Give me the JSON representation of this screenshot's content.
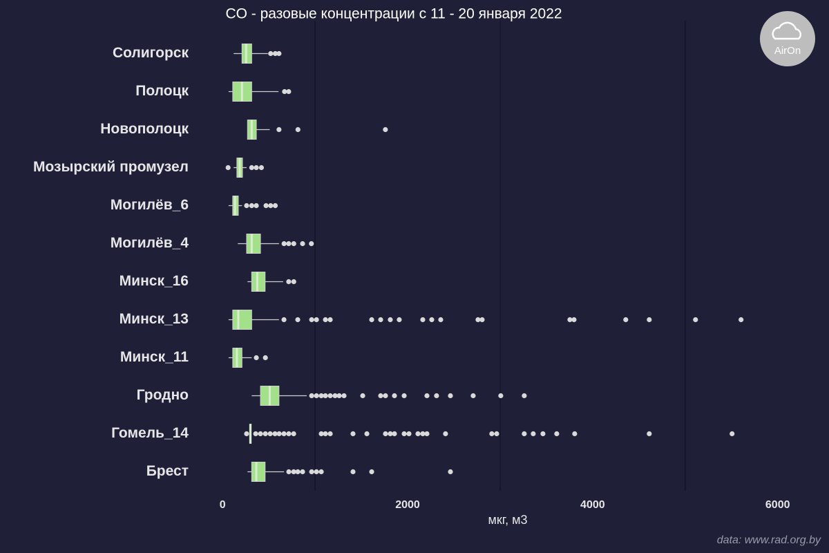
{
  "chart_data": {
    "type": "box",
    "title": "CO - разовые концентрации с 11 - 20 января 2022",
    "xlabel": "мкг, м3",
    "caption": "data: www.rad.org.by",
    "logo": "AirOn",
    "xlim": [
      -240,
      6480
    ],
    "xticks": [
      0,
      2000,
      4000,
      6000
    ],
    "grid_lines": [
      1000,
      3000,
      5000
    ],
    "box_color": "#a3e08a",
    "categories": [
      "Солигорск",
      "Полоцк",
      "Новополоцк",
      "Мозырский промузел",
      "Могилёв_6",
      "Могилёв_4",
      "Минск_16",
      "Минск_13",
      "Минск_11",
      "Гродно",
      "Гомель_14",
      "Брест"
    ],
    "boxes": [
      {
        "whislo": 120,
        "q1": 210,
        "med": 255,
        "q3": 315,
        "whishi": 490,
        "fliers": [
          520,
          570,
          610
        ]
      },
      {
        "whislo": 65,
        "q1": 110,
        "med": 210,
        "q3": 315,
        "whishi": 605,
        "fliers": [
          670,
          715
        ]
      },
      {
        "whislo": 270,
        "q1": 270,
        "med": 315,
        "q3": 365,
        "whishi": 510,
        "fliers": [
          610,
          815,
          1760
        ]
      },
      {
        "whislo": 120,
        "q1": 155,
        "med": 185,
        "q3": 215,
        "whishi": 260,
        "fliers": [
          60,
          315,
          365,
          420
        ]
      },
      {
        "whislo": 65,
        "q1": 110,
        "med": 135,
        "q3": 170,
        "whishi": 210,
        "fliers": [
          260,
          315,
          365,
          470,
          520,
          570
        ]
      },
      {
        "whislo": 165,
        "q1": 260,
        "med": 315,
        "q3": 410,
        "whishi": 610,
        "fliers": [
          665,
          715,
          770,
          865,
          960
        ]
      },
      {
        "whislo": 270,
        "q1": 315,
        "med": 375,
        "q3": 460,
        "whishi": 655,
        "fliers": [
          715,
          770
        ]
      },
      {
        "whislo": 65,
        "q1": 110,
        "med": 170,
        "q3": 315,
        "whishi": 610,
        "fliers": [
          664,
          813,
          963,
          1015,
          1112,
          1164,
          1612,
          1709,
          1813,
          1910,
          2164,
          2261,
          2358,
          2761,
          2806,
          3754,
          3799,
          4358,
          4612,
          5112,
          5604
        ]
      },
      {
        "whislo": 65,
        "q1": 110,
        "med": 155,
        "q3": 210,
        "whishi": 315,
        "fliers": [
          365,
          463
        ]
      },
      {
        "whislo": 315,
        "q1": 410,
        "med": 510,
        "q3": 610,
        "whishi": 910,
        "fliers": [
          963,
          1015,
          1067,
          1112,
          1164,
          1216,
          1261,
          1313,
          1515,
          1709,
          1761,
          1858,
          1963,
          2209,
          2313,
          2463,
          2709,
          3007,
          3261
        ]
      },
      {
        "whislo": 295,
        "q1": 295,
        "med": 300,
        "q3": 310,
        "whishi": 310,
        "fliers": [
          260,
          358,
          410,
          463,
          515,
          567,
          612,
          664,
          716,
          769,
          1067,
          1112,
          1164,
          1410,
          1560,
          1761,
          1813,
          1858,
          1963,
          2015,
          2112,
          2164,
          2209,
          2410,
          2910,
          2963,
          3261,
          3358,
          3463,
          3612,
          3806,
          4612,
          5507
        ]
      },
      {
        "whislo": 270,
        "q1": 315,
        "med": 365,
        "q3": 460,
        "whishi": 665,
        "fliers": [
          716,
          769,
          813,
          865,
          963,
          1015,
          1067,
          1410,
          1612,
          2463
        ]
      }
    ]
  }
}
